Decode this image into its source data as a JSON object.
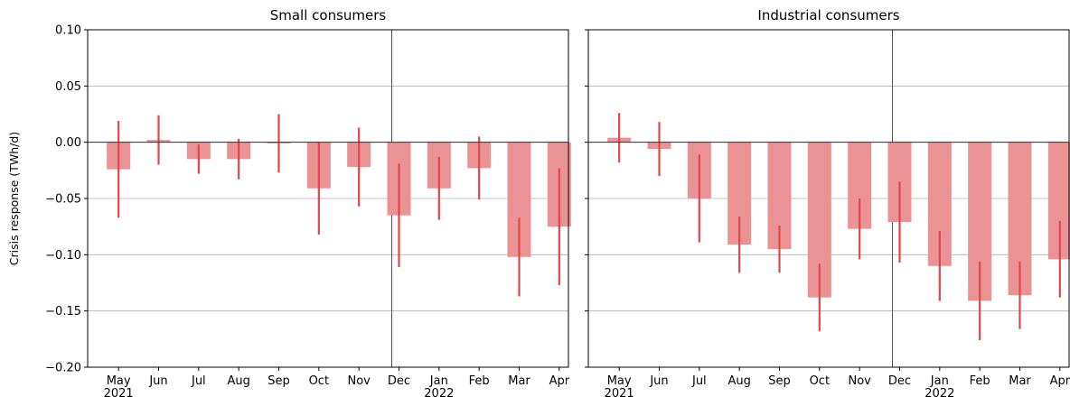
{
  "chart_data": [
    {
      "type": "bar",
      "title": "Small consumers",
      "y_label": "Crisis response (TWh/d)",
      "categories": [
        "May\n2021",
        "Jun",
        "Jul",
        "Aug",
        "Sep",
        "Oct",
        "Nov",
        "Dec",
        "Jan\n2022",
        "Feb",
        "Mar",
        "Apr"
      ],
      "values": [
        -0.024,
        0.002,
        -0.015,
        -0.015,
        -0.001,
        -0.041,
        -0.022,
        -0.065,
        -0.041,
        -0.023,
        -0.102,
        -0.075
      ],
      "errors": [
        0.043,
        0.022,
        0.013,
        0.018,
        0.026,
        0.041,
        0.035,
        0.046,
        0.028,
        0.028,
        0.035,
        0.052
      ],
      "color": "#eb9394",
      "error_color": "#e0474c",
      "ylim": [
        -0.2,
        0.1
      ],
      "yticks": [
        {
          "value": -0.2,
          "label": "−0.20"
        },
        {
          "value": -0.15,
          "label": "−0.15"
        },
        {
          "value": -0.1,
          "label": "−0.10"
        },
        {
          "value": -0.05,
          "label": "−0.05"
        },
        {
          "value": 0,
          "label": "0.00"
        },
        {
          "value": 0.05,
          "label": "0.05"
        },
        {
          "value": 0.1,
          "label": "0.10"
        }
      ],
      "grid": true
    },
    {
      "type": "bar",
      "title": "Industrial consumers",
      "categories": [
        "May\n2021",
        "Jun",
        "Jul",
        "Aug",
        "Sep",
        "Oct",
        "Nov",
        "Dec",
        "Jan\n2022",
        "Feb",
        "Mar",
        "Apr"
      ],
      "values": [
        0.004,
        -0.006,
        -0.05,
        -0.091,
        -0.095,
        -0.138,
        -0.077,
        -0.071,
        -0.11,
        -0.141,
        -0.136,
        -0.104
      ],
      "errors": [
        0.022,
        0.024,
        0.039,
        0.025,
        0.021,
        0.03,
        0.027,
        0.036,
        0.031,
        0.035,
        0.03,
        0.034
      ],
      "color": "#eb9394",
      "error_color": "#e0474c",
      "sharey": true,
      "grid": true
    }
  ]
}
